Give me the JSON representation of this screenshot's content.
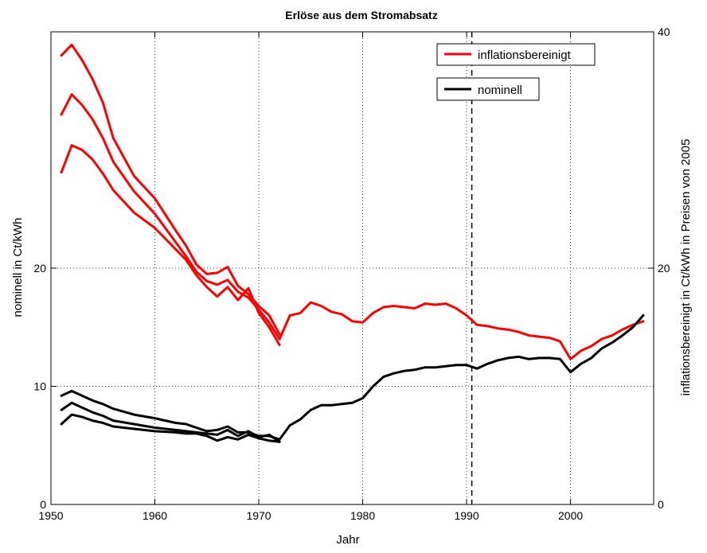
{
  "chart_data": {
    "type": "line",
    "title": "Erlöse aus dem Stromabsatz",
    "xlabel": "Jahr",
    "ylabel_left": "nominell in Ct/kWh",
    "ylabel_right": "inflationsbereinigt in Ct/kWh in Preisen von 2005",
    "xlim": [
      1950,
      2008
    ],
    "ylim_left": [
      0,
      40
    ],
    "ylim_right": [
      0,
      40
    ],
    "xticks": [
      "1950",
      "1960",
      "1970",
      "1980",
      "1990",
      "2000"
    ],
    "yticks_left": [
      "0",
      "10",
      "20"
    ],
    "yticks_right": [
      "0",
      "20",
      "40"
    ],
    "grid": true,
    "vline_x": 1990.5,
    "legend": [
      "inflationsbereinigt",
      "nominell"
    ],
    "colors": {
      "inflationsbereinigt": "#ff0000",
      "nominell": "#000000"
    },
    "series": [
      {
        "name": "inflationsbereinigt",
        "color": "#ff0000",
        "x": [
          1951,
          1952,
          1953,
          1954,
          1955,
          1956,
          1958,
          1960,
          1962,
          1963,
          1964,
          1965,
          1966,
          1967,
          1968,
          1969,
          1970,
          1971,
          1972
        ],
        "y": [
          38.0,
          38.9,
          37.6,
          36.0,
          34.0,
          31.0,
          27.8,
          25.9,
          23.2,
          21.9,
          20.3,
          19.5,
          19.6,
          20.1,
          18.5,
          17.8,
          16.8,
          16.0,
          14.4
        ]
      },
      {
        "x": [
          1951,
          1952,
          1953,
          1954,
          1955,
          1956,
          1958,
          1960,
          1962,
          1963,
          1964,
          1965,
          1966,
          1967,
          1968,
          1969,
          1970,
          1971,
          1972
        ],
        "y": [
          33.0,
          34.7,
          33.8,
          32.6,
          31.0,
          29.0,
          26.5,
          24.6,
          22.2,
          21.0,
          19.7,
          18.9,
          18.6,
          19.0,
          18.0,
          17.5,
          16.5,
          15.4,
          14.0
        ]
      },
      {
        "x": [
          1951,
          1952,
          1953,
          1954,
          1955,
          1956,
          1958,
          1960,
          1962,
          1963,
          1964,
          1965,
          1966,
          1967,
          1968,
          1969,
          1970,
          1971,
          1972
        ],
        "y": [
          28.1,
          30.4,
          30.0,
          29.2,
          28.0,
          26.6,
          24.7,
          23.4,
          21.6,
          20.7,
          19.4,
          18.4,
          17.6,
          18.4,
          17.3,
          18.3,
          16.2,
          15.0,
          13.5
        ]
      },
      {
        "x": [
          1972,
          1973,
          1974,
          1975,
          1976,
          1977,
          1978,
          1979,
          1980,
          1981,
          1982,
          1983,
          1984,
          1985,
          1986,
          1987,
          1988,
          1989,
          1990,
          1991,
          1992,
          1993,
          1994,
          1995,
          1996,
          1997,
          1998,
          1999,
          2000,
          2001,
          2002,
          2003,
          2004,
          2005,
          2006,
          2007
        ],
        "y": [
          14.0,
          16.0,
          16.2,
          17.1,
          16.8,
          16.3,
          16.1,
          15.5,
          15.4,
          16.2,
          16.7,
          16.8,
          16.7,
          16.6,
          17.0,
          16.9,
          17.0,
          16.6,
          16.0,
          15.2,
          15.1,
          14.9,
          14.8,
          14.6,
          14.3,
          14.2,
          14.1,
          13.8,
          12.3,
          13.0,
          13.4,
          14.0,
          14.3,
          14.8,
          15.2,
          15.5
        ]
      },
      {
        "name": "nominell",
        "color": "#000000",
        "x": [
          1951,
          1952,
          1953,
          1954,
          1955,
          1956,
          1958,
          1960,
          1962,
          1963,
          1964,
          1965,
          1966,
          1967,
          1968,
          1969,
          1970,
          1971,
          1972
        ],
        "y": [
          9.2,
          9.6,
          9.2,
          8.8,
          8.5,
          8.1,
          7.6,
          7.3,
          6.9,
          6.8,
          6.5,
          6.2,
          6.3,
          6.6,
          6.1,
          6.1,
          5.8,
          5.8,
          5.5
        ]
      },
      {
        "color": "#000000",
        "x": [
          1951,
          1952,
          1953,
          1954,
          1955,
          1956,
          1958,
          1960,
          1962,
          1963,
          1964,
          1965,
          1966,
          1967,
          1968,
          1969,
          1970,
          1971,
          1972
        ],
        "y": [
          8.0,
          8.6,
          8.2,
          7.8,
          7.5,
          7.1,
          6.8,
          6.5,
          6.3,
          6.2,
          6.1,
          6.0,
          5.9,
          6.3,
          5.8,
          6.2,
          5.7,
          5.9,
          5.3
        ]
      },
      {
        "color": "#000000",
        "x": [
          1951,
          1952,
          1953,
          1954,
          1955,
          1956,
          1958,
          1960,
          1962,
          1963,
          1964,
          1965,
          1966,
          1967,
          1968,
          1969,
          1970,
          1971,
          1972
        ],
        "y": [
          6.8,
          7.6,
          7.4,
          7.1,
          6.9,
          6.6,
          6.4,
          6.2,
          6.1,
          6.0,
          6.0,
          5.8,
          5.4,
          5.7,
          5.5,
          5.9,
          5.6,
          5.4,
          5.3
        ]
      },
      {
        "color": "#000000",
        "x": [
          1972,
          1973,
          1974,
          1975,
          1976,
          1977,
          1978,
          1979,
          1980,
          1981,
          1982,
          1983,
          1984,
          1985,
          1986,
          1987,
          1988,
          1989,
          1990,
          1991,
          1992,
          1993,
          1994,
          1995,
          1996,
          1997,
          1998,
          1999,
          2000,
          2001,
          2002,
          2003,
          2004,
          2005,
          2006,
          2007
        ],
        "y": [
          5.5,
          6.7,
          7.2,
          8.0,
          8.4,
          8.4,
          8.5,
          8.6,
          9.0,
          10.0,
          10.8,
          11.1,
          11.3,
          11.4,
          11.6,
          11.6,
          11.7,
          11.8,
          11.8,
          11.5,
          11.9,
          12.2,
          12.4,
          12.5,
          12.3,
          12.4,
          12.4,
          12.3,
          11.2,
          11.9,
          12.4,
          13.2,
          13.7,
          14.3,
          15.0,
          16.0
        ]
      }
    ]
  }
}
